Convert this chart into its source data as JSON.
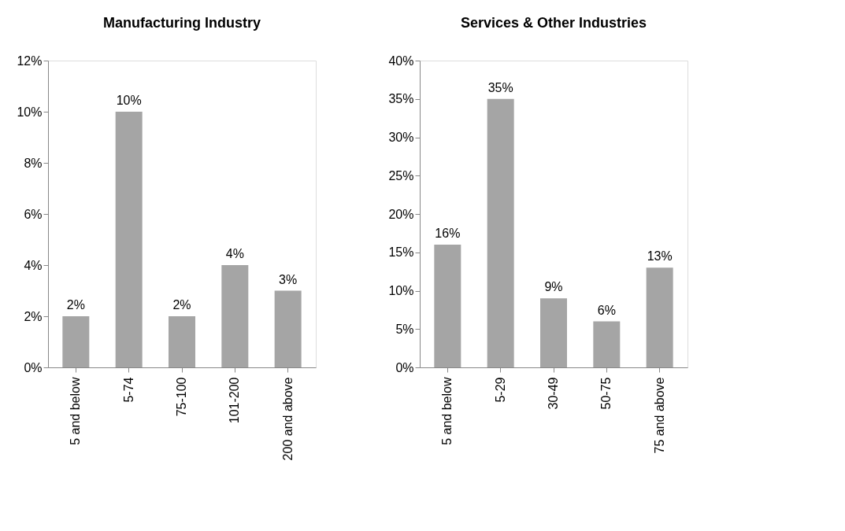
{
  "chart_data": [
    {
      "type": "bar",
      "title": "Manufacturing Industry",
      "categories": [
        "5 and below",
        "5-74",
        "75-100",
        "101-200",
        "200 and above"
      ],
      "series": [
        {
          "color": "#a5a5a5",
          "values": [
            2,
            10,
            2,
            4,
            3
          ],
          "value_labels": [
            "2%",
            "10%",
            "2%",
            "4%",
            "3%"
          ]
        }
      ],
      "ylim": [
        0,
        12
      ],
      "yticks": [
        {
          "value": 0,
          "label": "0%"
        },
        {
          "value": 2,
          "label": "2%"
        },
        {
          "value": 4,
          "label": "4%"
        },
        {
          "value": 6,
          "label": "6%"
        },
        {
          "value": 8,
          "label": "8%"
        },
        {
          "value": 10,
          "label": "10%"
        },
        {
          "value": 12,
          "label": "12%"
        }
      ],
      "grid": false
    },
    {
      "type": "bar",
      "title": "Services & Other Industries",
      "categories": [
        "5 and below",
        "5-29",
        "30-49",
        "50-75",
        "75 and above"
      ],
      "series": [
        {
          "color": "#a5a5a5",
          "values": [
            16,
            35,
            9,
            6,
            13
          ],
          "value_labels": [
            "16%",
            "35%",
            "9%",
            "6%",
            "13%"
          ]
        }
      ],
      "ylim": [
        0,
        40
      ],
      "yticks": [
        {
          "value": 0,
          "label": "0%"
        },
        {
          "value": 5,
          "label": "5%"
        },
        {
          "value": 10,
          "label": "10%"
        },
        {
          "value": 15,
          "label": "15%"
        },
        {
          "value": 20,
          "label": "20%"
        },
        {
          "value": 25,
          "label": "25%"
        },
        {
          "value": 30,
          "label": "30%"
        },
        {
          "value": 35,
          "label": "35%"
        },
        {
          "value": 40,
          "label": "40%"
        }
      ],
      "grid": false
    }
  ]
}
